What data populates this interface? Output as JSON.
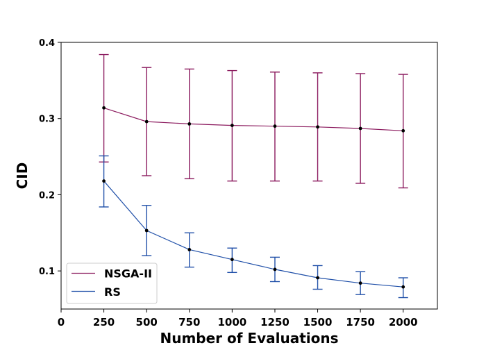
{
  "chart_data": {
    "type": "line",
    "title": "",
    "xlabel": "Number of Evaluations",
    "ylabel": "CID",
    "xlim": [
      0,
      2200
    ],
    "ylim": [
      0.05,
      0.4
    ],
    "x_ticks": [
      0,
      250,
      500,
      750,
      1000,
      1250,
      1500,
      1750,
      2000
    ],
    "y_ticks": [
      0.1,
      0.2,
      0.3,
      0.4
    ],
    "x_tick_labels": [
      "0",
      "250",
      "500",
      "750",
      "1000",
      "1250",
      "1500",
      "1750",
      "2000"
    ],
    "y_tick_labels": [
      "0.1",
      "0.2",
      "0.3",
      "0.4"
    ],
    "grid": false,
    "legend_position": "bottom-left",
    "series": [
      {
        "name": "NSGA-II",
        "color": "#8b1a5e",
        "x": [
          250,
          500,
          750,
          1000,
          1250,
          1500,
          1750,
          2000
        ],
        "y": [
          0.314,
          0.296,
          0.293,
          0.291,
          0.29,
          0.289,
          0.287,
          0.284
        ],
        "error_lower": [
          0.243,
          0.225,
          0.221,
          0.218,
          0.218,
          0.218,
          0.215,
          0.209
        ],
        "error_upper": [
          0.384,
          0.367,
          0.365,
          0.363,
          0.361,
          0.36,
          0.359,
          0.358
        ]
      },
      {
        "name": "RS",
        "color": "#1f4fa8",
        "x": [
          250,
          500,
          750,
          1000,
          1250,
          1500,
          1750,
          2000
        ],
        "y": [
          0.218,
          0.153,
          0.128,
          0.115,
          0.102,
          0.091,
          0.084,
          0.079
        ],
        "error_lower": [
          0.184,
          0.12,
          0.105,
          0.098,
          0.086,
          0.076,
          0.069,
          0.065
        ],
        "error_upper": [
          0.251,
          0.186,
          0.15,
          0.13,
          0.118,
          0.107,
          0.099,
          0.091
        ]
      }
    ]
  }
}
